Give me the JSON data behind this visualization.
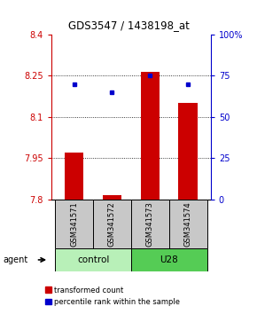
{
  "title": "GDS3547 / 1438198_at",
  "samples": [
    "GSM341571",
    "GSM341572",
    "GSM341573",
    "GSM341574"
  ],
  "transformed_counts": [
    7.97,
    7.815,
    8.265,
    8.15
  ],
  "percentile_ranks": [
    70,
    65,
    75,
    70
  ],
  "bar_baseline": 7.8,
  "ylim_left": [
    7.8,
    8.4
  ],
  "ylim_right": [
    0,
    100
  ],
  "yticks_left": [
    7.8,
    7.95,
    8.1,
    8.25,
    8.4
  ],
  "ytick_labels_left": [
    "7.8",
    "7.95",
    "8.1",
    "8.25",
    "8.4"
  ],
  "yticks_right": [
    0,
    25,
    50,
    75,
    100
  ],
  "ytick_labels_right": [
    "0",
    "25",
    "50",
    "75",
    "100%"
  ],
  "hlines": [
    7.95,
    8.1,
    8.25
  ],
  "bar_color": "#cc0000",
  "dot_color": "#0000cc",
  "bar_width": 0.5,
  "legend_items": [
    "transformed count",
    "percentile rank within the sample"
  ],
  "legend_colors": [
    "#cc0000",
    "#0000cc"
  ],
  "control_color": "#b8f0b8",
  "u28_color": "#55cc55",
  "sample_box_color": "#c8c8c8",
  "title_fontsize": 8.5,
  "axis_fontsize": 7,
  "label_fontsize": 6.5,
  "sample_fontsize": 6,
  "group_fontsize": 7.5
}
